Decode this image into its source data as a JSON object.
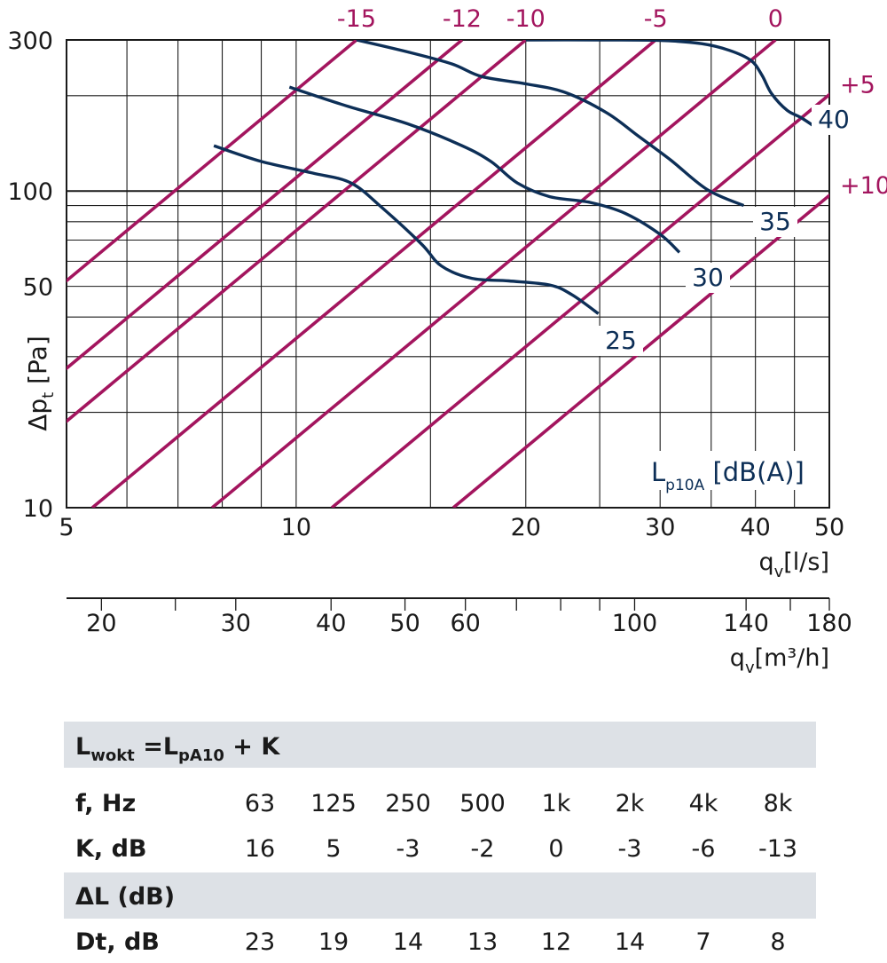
{
  "chart_data": {
    "type": "line",
    "x_axis": {
      "label_main": "q",
      "label_sub": "v",
      "label_unit": "[l/s]",
      "scale": "log",
      "range": [
        5,
        50
      ],
      "ticks": [
        5,
        10,
        20,
        30,
        40,
        50
      ],
      "ticks_minor": [
        6,
        7,
        8,
        9,
        15,
        25,
        35,
        45
      ]
    },
    "y_axis": {
      "label_main": "Δp",
      "label_sub": "t",
      "label_unit": "[Pa]",
      "scale": "log",
      "range": [
        10,
        300
      ],
      "ticks": [
        10,
        50,
        100,
        300
      ],
      "ticks_minor": [
        20,
        30,
        40,
        60,
        70,
        80,
        90,
        200
      ]
    },
    "secondary_x_axis": {
      "label_main": "q",
      "label_sub": "v",
      "label_unit": "[m³/h]",
      "scale": "log",
      "ticks": [
        20,
        30,
        40,
        50,
        60,
        100,
        140,
        180
      ],
      "ticks_minor": [
        25,
        70,
        80,
        90,
        160
      ]
    },
    "noise_lines": {
      "title_main": "L",
      "title_sub": "p10A",
      "title_unit": "[dB(A)]",
      "color": "#a3155e",
      "lines": [
        {
          "label": "-15",
          "x_at_300Pa": 12
        },
        {
          "label": "-12",
          "x_at_300Pa": 16.5
        },
        {
          "label": "-10",
          "x_at_300Pa": 20
        },
        {
          "label": "-5",
          "x_at_300Pa": 29.6
        },
        {
          "label": "0",
          "x_at_300Pa": 42.5
        },
        {
          "label": "+5",
          "x_at_300Pa": 61
        },
        {
          "label": "+10",
          "x_at_300Pa": 88
        }
      ]
    },
    "series": [
      {
        "name": "25",
        "color": "#0d2f57",
        "points": [
          [
            7.8,
            139
          ],
          [
            9,
            124
          ],
          [
            10.5,
            114
          ],
          [
            11.8,
            106
          ],
          [
            13,
            88
          ],
          [
            14.6,
            68
          ],
          [
            15.5,
            58
          ],
          [
            17,
            53
          ],
          [
            19,
            52
          ],
          [
            21.5,
            50.5
          ],
          [
            23,
            47
          ],
          [
            24.9,
            41
          ]
        ]
      },
      {
        "name": "30",
        "color": "#0d2f57",
        "points": [
          [
            9.8,
            213
          ],
          [
            11.7,
            185
          ],
          [
            14,
            163
          ],
          [
            16.5,
            139
          ],
          [
            18,
            124
          ],
          [
            19.5,
            106
          ],
          [
            21.5,
            96
          ],
          [
            24.3,
            92
          ],
          [
            27,
            85
          ],
          [
            30,
            73
          ],
          [
            31.8,
            64
          ]
        ]
      },
      {
        "name": "35",
        "color": "#0d2f57",
        "points": [
          [
            12,
            300
          ],
          [
            14,
            275
          ],
          [
            16,
            252
          ],
          [
            17.5,
            230
          ],
          [
            20,
            218
          ],
          [
            22.5,
            205
          ],
          [
            25.5,
            177
          ],
          [
            28,
            150
          ],
          [
            31,
            125
          ],
          [
            34.6,
            101
          ],
          [
            38.6,
            90
          ]
        ]
      },
      {
        "name": "40",
        "color": "#0d2f57",
        "points": [
          [
            20,
            300
          ],
          [
            25,
            300
          ],
          [
            30,
            299
          ],
          [
            34,
            292
          ],
          [
            37,
            278
          ],
          [
            39.5,
            258
          ],
          [
            40.8,
            232
          ],
          [
            42,
            203
          ],
          [
            44,
            180
          ],
          [
            46,
            170
          ],
          [
            48.9,
            154
          ]
        ]
      }
    ]
  },
  "table": {
    "rows": [
      {
        "type": "header",
        "main": "L",
        "sub1": "wokt",
        "mid": " =L",
        "sub2": "pA10",
        "tail": " + K"
      },
      {
        "type": "data",
        "label": "f, Hz",
        "values": [
          "63",
          "125",
          "250",
          "500",
          "1k",
          "2k",
          "4k",
          "8k"
        ]
      },
      {
        "type": "data",
        "label": "K, dB",
        "values": [
          "16",
          "5",
          "-3",
          "-2",
          "0",
          "-3",
          "-6",
          "-13"
        ]
      },
      {
        "type": "header",
        "main": "ΔL (dB)"
      },
      {
        "type": "data",
        "label": "Dt, dB",
        "values": [
          "23",
          "19",
          "14",
          "13",
          "12",
          "14",
          "7",
          "8"
        ]
      }
    ]
  },
  "colors": {
    "navy": "#0d2f57",
    "magenta": "#a3155e",
    "grid": "#1a1a1a",
    "band": "#dde1e6"
  }
}
